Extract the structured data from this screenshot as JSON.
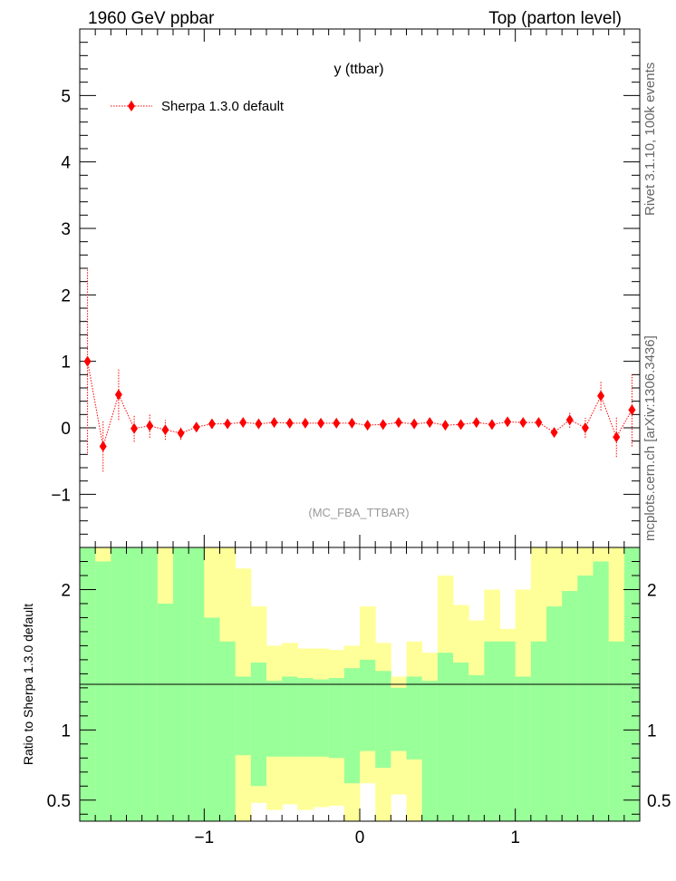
{
  "header": {
    "left": "1960 GeV ppbar",
    "right": "Top (parton level)"
  },
  "side": {
    "rivet": "Rivet 3.1.10,  100k events",
    "mcplots": "mcplots.cern.ch [arXiv:1306.3436]"
  },
  "chart_data": {
    "type": "scatter",
    "title": "y (ttbar)",
    "analysis_label": "(MC_FBA_TTBAR)",
    "xlim": [
      -1.8,
      1.8
    ],
    "ylim": [
      -1.8,
      6.0
    ],
    "ratio_ylim": [
      0.35,
      2.3
    ],
    "ratio_ylabel": "Ratio to Sherpa 1.3.0 default",
    "colors": {
      "series": "#ff0000",
      "band_inner": "#99ff99",
      "band_outer": "#ffff99"
    },
    "x_ticks": [
      -1,
      0,
      1
    ],
    "x_tick_labels": [
      "−1",
      "0",
      "1"
    ],
    "y_ticks": [
      -1,
      0,
      1,
      2,
      3,
      4,
      5
    ],
    "y_tick_labels": [
      "−1",
      "0",
      "1",
      "2",
      "3",
      "4",
      "5"
    ],
    "ratio_ticks": [
      0.5,
      1,
      2
    ],
    "ratio_tick_labels": [
      "0.5",
      "1",
      "2"
    ],
    "legend": [
      "Sherpa 1.3.0 default"
    ],
    "bin_edges": [
      -1.8,
      -1.7,
      -1.6,
      -1.5,
      -1.4,
      -1.3,
      -1.2,
      -1.1,
      -1.0,
      -0.9,
      -0.8,
      -0.7,
      -0.6,
      -0.5,
      -0.4,
      -0.3,
      -0.2,
      -0.1,
      0.0,
      0.1,
      0.2,
      0.3,
      0.4,
      0.5,
      0.6,
      0.7,
      0.8,
      0.9,
      1.0,
      1.1,
      1.2,
      1.3,
      1.4,
      1.5,
      1.6,
      1.7,
      1.8
    ],
    "series": [
      {
        "name": "Sherpa 1.3.0 default",
        "x": [
          -1.75,
          -1.65,
          -1.55,
          -1.45,
          -1.35,
          -1.25,
          -1.15,
          -1.05,
          -0.95,
          -0.85,
          -0.75,
          -0.65,
          -0.55,
          -0.45,
          -0.35,
          -0.25,
          -0.15,
          -0.05,
          0.05,
          0.15,
          0.25,
          0.35,
          0.45,
          0.55,
          0.65,
          0.75,
          0.85,
          0.95,
          1.05,
          1.15,
          1.25,
          1.35,
          1.45,
          1.55,
          1.65,
          1.75
        ],
        "y": [
          1.0,
          -0.28,
          0.5,
          -0.01,
          0.03,
          -0.03,
          -0.08,
          0.01,
          0.06,
          0.06,
          0.08,
          0.06,
          0.08,
          0.07,
          0.07,
          0.07,
          0.07,
          0.07,
          0.04,
          0.05,
          0.08,
          0.06,
          0.08,
          0.04,
          0.05,
          0.08,
          0.05,
          0.09,
          0.08,
          0.08,
          -0.07,
          0.12,
          0.0,
          0.48,
          -0.14,
          0.27
        ],
        "yerr": [
          1.38,
          0.38,
          0.38,
          0.2,
          0.18,
          0.15,
          0.1,
          0.05,
          0.03,
          0.03,
          0.03,
          0.03,
          0.03,
          0.03,
          0.03,
          0.03,
          0.03,
          0.03,
          0.03,
          0.03,
          0.03,
          0.03,
          0.03,
          0.03,
          0.03,
          0.03,
          0.03,
          0.03,
          0.03,
          0.03,
          0.07,
          0.12,
          0.15,
          0.22,
          0.3,
          0.55
        ]
      }
    ],
    "ratio_band": {
      "inner_hi": [
        2.3,
        2.2,
        2.3,
        2.3,
        2.3,
        1.9,
        2.3,
        2.3,
        1.8,
        1.63,
        1.38,
        1.48,
        1.35,
        1.38,
        1.37,
        1.36,
        1.37,
        1.44,
        1.5,
        1.42,
        1.3,
        1.38,
        1.35,
        1.55,
        1.48,
        1.39,
        1.63,
        1.63,
        1.38,
        1.63,
        1.88,
        1.99,
        2.1,
        2.2,
        1.63,
        2.3
      ],
      "outer_hi": [
        2.3,
        2.3,
        2.3,
        2.3,
        2.3,
        2.3,
        2.3,
        2.3,
        2.3,
        2.3,
        2.15,
        1.88,
        1.6,
        1.62,
        1.58,
        1.58,
        1.57,
        1.6,
        1.88,
        1.62,
        1.38,
        1.63,
        1.55,
        2.1,
        1.89,
        1.78,
        2.0,
        1.72,
        2.0,
        2.3,
        2.3,
        2.3,
        2.3,
        2.3,
        2.3,
        2.3
      ],
      "inner_lo": [
        0.35,
        0.35,
        0.35,
        0.35,
        0.35,
        0.35,
        0.35,
        0.35,
        0.35,
        0.35,
        0.82,
        0.6,
        0.81,
        0.81,
        0.81,
        0.81,
        0.8,
        0.62,
        0.85,
        0.73,
        0.85,
        0.79,
        0.35,
        0.35,
        0.35,
        0.35,
        0.35,
        0.35,
        0.35,
        0.35,
        0.35,
        0.35,
        0.35,
        0.35,
        0.35,
        0.35
      ],
      "outer_lo": [
        0.35,
        0.35,
        0.35,
        0.35,
        0.35,
        0.35,
        0.35,
        0.35,
        0.35,
        0.35,
        0.35,
        0.48,
        0.43,
        0.47,
        0.43,
        0.45,
        0.46,
        0.35,
        0.62,
        0.35,
        0.54,
        0.35,
        0.35,
        0.35,
        0.35,
        0.42,
        0.42,
        0.42,
        0.35,
        0.35,
        0.35,
        0.35,
        0.48,
        0.35,
        0.35,
        0.35
      ]
    }
  }
}
